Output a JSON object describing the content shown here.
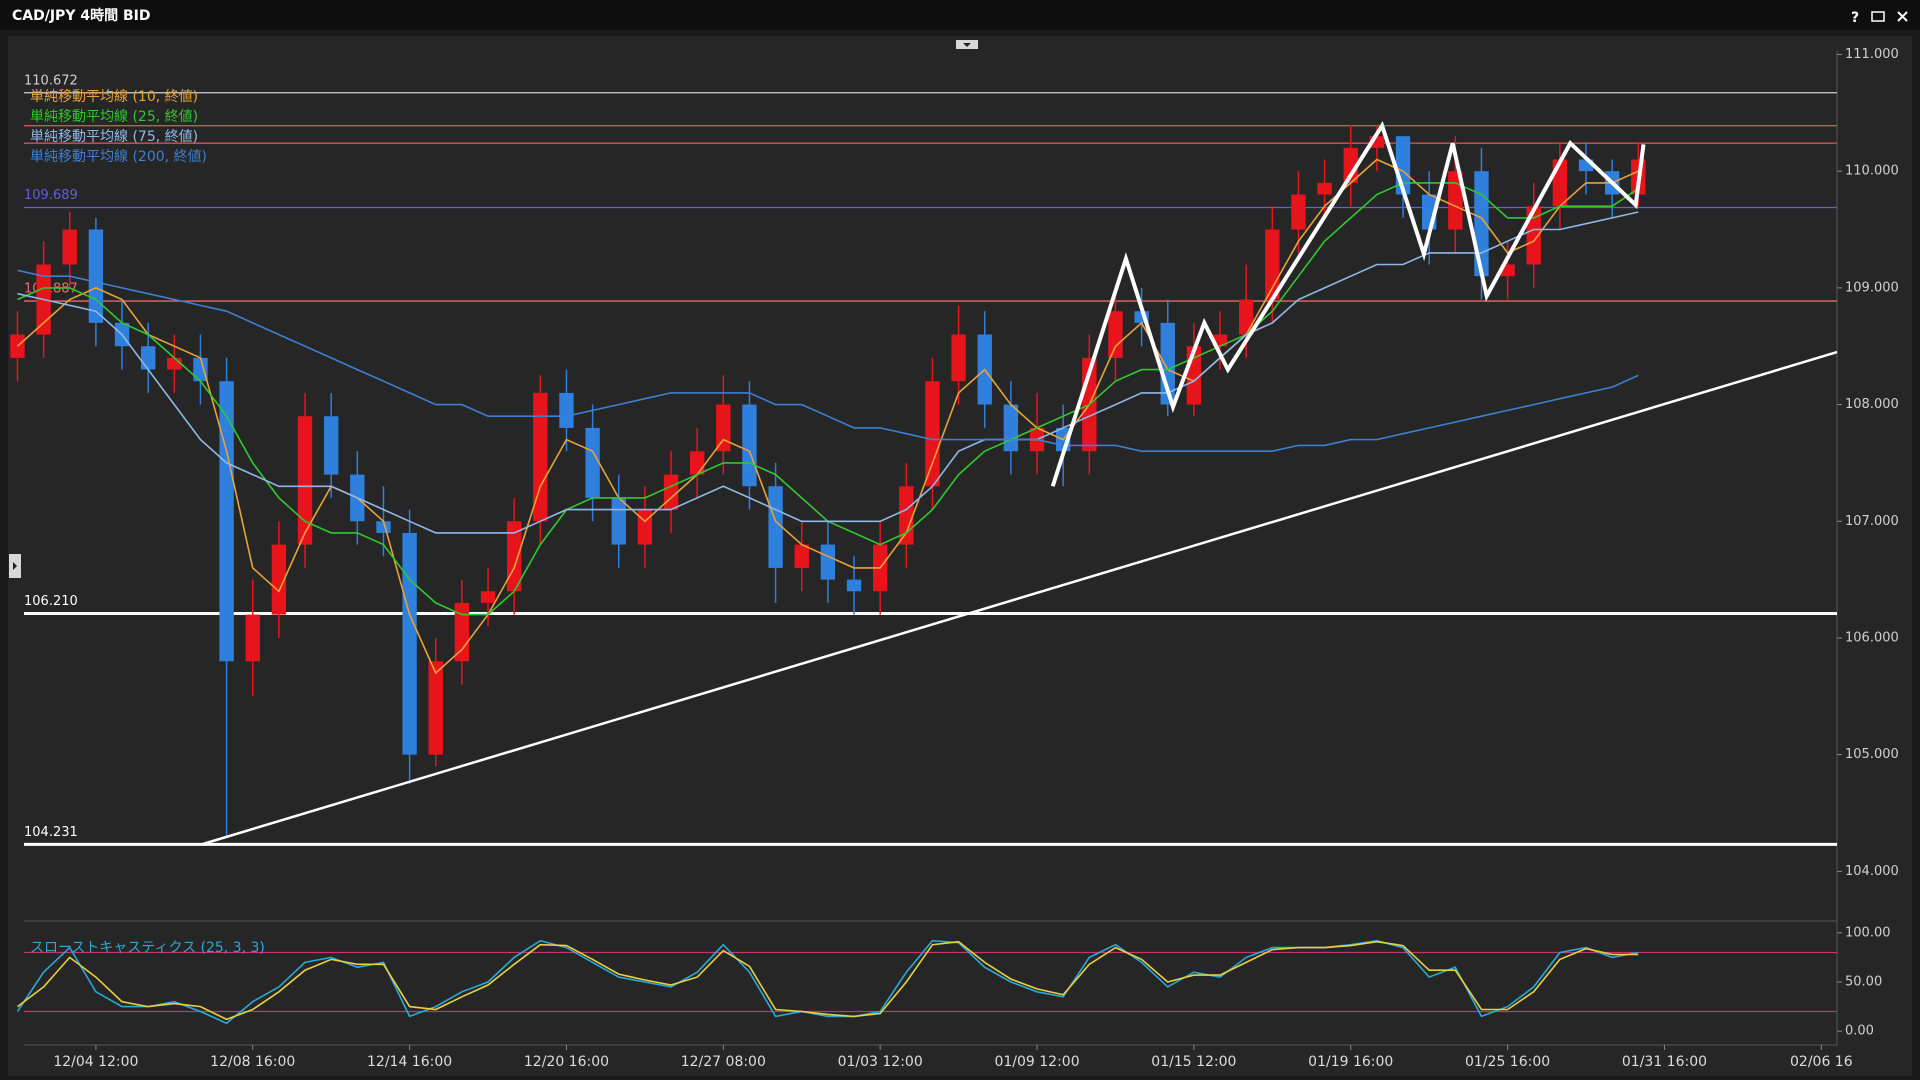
{
  "window": {
    "title": "CAD/JPY 4時間 BID",
    "help": "?"
  },
  "chart_data": [
    {
      "type": "candlestick",
      "xlim": [
        0.25,
        69.6
      ],
      "ylim": [
        103.6,
        111.03
      ],
      "yticks": [
        {
          "value": 104,
          "label": "104.000"
        },
        {
          "value": 105,
          "label": "105.000"
        },
        {
          "value": 106,
          "label": "106.000"
        },
        {
          "value": 107,
          "label": "107.000"
        },
        {
          "value": 108,
          "label": "108.000"
        },
        {
          "value": 109,
          "label": "109.000"
        },
        {
          "value": 110,
          "label": "110.000"
        },
        {
          "value": 111,
          "label": "111.000"
        }
      ],
      "up_color": "#e8141c",
      "down_color": "#2f7fdc",
      "open": [
        108.4,
        108.6,
        109.2,
        109.5,
        108.7,
        108.5,
        108.3,
        108.4,
        108.2,
        105.8,
        106.2,
        106.8,
        107.9,
        107.4,
        107.0,
        106.9,
        105.0,
        105.8,
        106.3,
        106.4,
        107.0,
        108.1,
        107.8,
        107.2,
        106.8,
        107.1,
        107.4,
        107.6,
        108.0,
        107.3,
        106.6,
        106.8,
        106.5,
        106.4,
        106.8,
        107.3,
        108.2,
        108.6,
        108.0,
        107.6,
        107.8,
        107.6,
        108.4,
        108.8,
        108.7,
        108.0,
        108.5,
        108.6,
        108.9,
        109.5,
        109.8,
        109.9,
        110.2,
        110.3,
        109.8,
        109.5,
        110.0,
        109.1,
        109.2,
        109.7,
        110.1,
        110.0,
        109.8
      ],
      "high": [
        108.8,
        109.4,
        109.65,
        109.6,
        108.9,
        108.7,
        108.6,
        108.6,
        108.4,
        106.5,
        107.0,
        108.1,
        108.1,
        107.6,
        107.3,
        107.1,
        106.0,
        106.5,
        106.6,
        107.2,
        108.25,
        108.3,
        108.0,
        107.4,
        107.3,
        107.6,
        107.8,
        108.25,
        108.2,
        107.5,
        107.0,
        107.0,
        106.7,
        107.0,
        107.5,
        108.4,
        108.85,
        108.8,
        108.2,
        108.1,
        108.0,
        108.6,
        109.0,
        109.0,
        108.9,
        108.7,
        108.8,
        109.2,
        109.7,
        110.0,
        110.1,
        110.4,
        110.4,
        110.3,
        110.0,
        110.3,
        110.2,
        109.4,
        109.9,
        110.25,
        110.25,
        110.1,
        110.25
      ],
      "low": [
        108.2,
        108.4,
        109.0,
        108.5,
        108.3,
        108.1,
        108.1,
        108.0,
        104.3,
        105.5,
        106.0,
        106.6,
        107.2,
        106.8,
        106.7,
        104.75,
        104.9,
        105.6,
        106.1,
        106.2,
        106.8,
        107.6,
        107.0,
        106.6,
        106.6,
        106.9,
        107.2,
        107.4,
        107.1,
        106.3,
        106.4,
        106.3,
        106.2,
        106.2,
        106.6,
        107.1,
        108.0,
        107.8,
        107.4,
        107.4,
        107.3,
        107.4,
        108.2,
        108.5,
        107.9,
        107.9,
        108.3,
        108.4,
        108.7,
        109.3,
        109.6,
        109.7,
        110.0,
        109.6,
        109.2,
        109.3,
        108.9,
        108.9,
        109.0,
        109.5,
        109.8,
        109.6,
        109.7
      ],
      "close": [
        108.6,
        109.2,
        109.5,
        108.7,
        108.5,
        108.3,
        108.4,
        108.2,
        105.8,
        106.2,
        106.8,
        107.9,
        107.4,
        107.0,
        106.9,
        105.0,
        105.8,
        106.3,
        106.4,
        107.0,
        108.1,
        107.8,
        107.2,
        106.8,
        107.1,
        107.4,
        107.6,
        108.0,
        107.3,
        106.6,
        106.8,
        106.5,
        106.4,
        106.8,
        107.3,
        108.2,
        108.6,
        108.0,
        107.6,
        107.8,
        107.6,
        108.4,
        108.8,
        108.7,
        108.0,
        108.5,
        108.6,
        108.9,
        109.5,
        109.8,
        109.9,
        110.2,
        110.3,
        109.8,
        109.5,
        110.0,
        109.1,
        109.2,
        109.7,
        110.1,
        110.0,
        109.8,
        110.1
      ],
      "series": [
        {
          "name": "単純移動平均線 (10, 終値)",
          "color": "#e8a23a",
          "values": [
            108.5,
            108.7,
            108.9,
            109.0,
            108.9,
            108.6,
            108.5,
            108.4,
            107.6,
            106.6,
            106.4,
            106.9,
            107.3,
            107.2,
            107.0,
            106.2,
            105.7,
            105.9,
            106.2,
            106.6,
            107.3,
            107.7,
            107.6,
            107.2,
            107.0,
            107.2,
            107.4,
            107.7,
            107.6,
            107.0,
            106.8,
            106.7,
            106.6,
            106.6,
            106.9,
            107.5,
            108.1,
            108.3,
            108.0,
            107.8,
            107.7,
            108.0,
            108.5,
            108.7,
            108.3,
            108.2,
            108.4,
            108.6,
            109.0,
            109.4,
            109.7,
            109.9,
            110.1,
            110.0,
            109.8,
            109.7,
            109.6,
            109.3,
            109.4,
            109.7,
            109.9,
            109.9,
            110.0
          ]
        },
        {
          "name": "単純移動平均線 (25, 終値)",
          "color": "#2fc82f",
          "values": [
            108.9,
            109.0,
            109.0,
            108.9,
            108.7,
            108.6,
            108.4,
            108.2,
            107.9,
            107.5,
            107.2,
            107.0,
            106.9,
            106.9,
            106.8,
            106.5,
            106.3,
            106.2,
            106.2,
            106.4,
            106.8,
            107.1,
            107.2,
            107.2,
            107.2,
            107.3,
            107.4,
            107.5,
            107.5,
            107.4,
            107.2,
            107.0,
            106.9,
            106.8,
            106.9,
            107.1,
            107.4,
            107.6,
            107.7,
            107.8,
            107.9,
            108.0,
            108.2,
            108.3,
            108.3,
            108.4,
            108.5,
            108.6,
            108.8,
            109.1,
            109.4,
            109.6,
            109.8,
            109.9,
            109.9,
            109.9,
            109.8,
            109.6,
            109.6,
            109.7,
            109.7,
            109.7,
            109.85
          ]
        },
        {
          "name": "単純移動平均線 (75, 終値)",
          "color": "#8fb8e8",
          "values": [
            108.95,
            108.9,
            108.85,
            108.8,
            108.6,
            108.3,
            108.0,
            107.7,
            107.5,
            107.4,
            107.3,
            107.3,
            107.3,
            107.2,
            107.1,
            107.0,
            106.9,
            106.9,
            106.9,
            106.9,
            107.0,
            107.1,
            107.1,
            107.1,
            107.1,
            107.1,
            107.2,
            107.3,
            107.2,
            107.1,
            107.0,
            107.0,
            107.0,
            107.0,
            107.1,
            107.3,
            107.6,
            107.7,
            107.7,
            107.7,
            107.8,
            107.9,
            108.0,
            108.1,
            108.1,
            108.2,
            108.4,
            108.6,
            108.7,
            108.9,
            109.0,
            109.1,
            109.2,
            109.2,
            109.3,
            109.3,
            109.3,
            109.4,
            109.5,
            109.5,
            109.55,
            109.6,
            109.65
          ]
        },
        {
          "name": "単純移動平均線 (200, 終値)",
          "color": "#3d7fd0",
          "values": [
            109.15,
            109.1,
            109.1,
            109.05,
            109.0,
            108.95,
            108.9,
            108.85,
            108.8,
            108.7,
            108.6,
            108.5,
            108.4,
            108.3,
            108.2,
            108.1,
            108.0,
            108.0,
            107.9,
            107.9,
            107.9,
            107.9,
            107.95,
            108.0,
            108.05,
            108.1,
            108.1,
            108.1,
            108.1,
            108.0,
            108.0,
            107.9,
            107.8,
            107.8,
            107.75,
            107.7,
            107.7,
            107.7,
            107.7,
            107.7,
            107.65,
            107.65,
            107.65,
            107.6,
            107.6,
            107.6,
            107.6,
            107.6,
            107.6,
            107.65,
            107.65,
            107.7,
            107.7,
            107.75,
            107.8,
            107.85,
            107.9,
            107.95,
            108.0,
            108.05,
            108.1,
            108.15,
            108.25
          ]
        }
      ],
      "levels": [
        {
          "value": 110.672,
          "label": "110.672",
          "color": "#d0d0d0"
        },
        {
          "value": 110.39,
          "color": "#d85050"
        },
        {
          "value": 110.24,
          "color": "#d85050"
        },
        {
          "value": 109.689,
          "label": "109.689",
          "color": "#6a5ae0"
        },
        {
          "value": 108.887,
          "label": "108.887",
          "color": "#e86a6a"
        },
        {
          "value": 106.21,
          "label": "106.210",
          "color": "#ffffff",
          "bold": true
        },
        {
          "value": 104.231,
          "label": "104.231",
          "color": "#ffffff",
          "bold": true
        }
      ],
      "trendline": {
        "x": [
          7.03,
          69.6
        ],
        "y": [
          104.23,
          108.45
        ],
        "color": "#ffffff"
      },
      "zigzag": {
        "x": [
          39.6,
          42.4,
          44.2,
          45.4,
          46.3,
          52.2,
          53.8,
          54.9,
          56.2,
          59.4,
          61.9,
          62.2
        ],
        "y": [
          107.3,
          109.25,
          107.98,
          108.7,
          108.3,
          110.39,
          109.29,
          110.24,
          108.93,
          110.24,
          109.71,
          110.23
        ],
        "color": "#ffffff"
      }
    },
    {
      "type": "line",
      "title": "スローストキャスティクス (25, 3, 3)",
      "title_color": "#2aa8d8",
      "xlim": [
        0.25,
        69.6
      ],
      "ylim": [
        -9,
        108
      ],
      "yticks": [
        {
          "value": 0,
          "label": "0.00"
        },
        {
          "value": 50,
          "label": "50.00"
        },
        {
          "value": 100,
          "label": "100.00"
        }
      ],
      "xticks": [
        {
          "value": 3,
          "label": "12/04 12:00"
        },
        {
          "value": 9,
          "label": "12/08 16:00"
        },
        {
          "value": 15,
          "label": "12/14 16:00"
        },
        {
          "value": 21,
          "label": "12/20 16:00"
        },
        {
          "value": 27,
          "label": "12/27 08:00"
        },
        {
          "value": 33,
          "label": "01/03 12:00"
        },
        {
          "value": 39,
          "label": "01/09 12:00"
        },
        {
          "value": 45,
          "label": "01/15 12:00"
        },
        {
          "value": 51,
          "label": "01/19 16:00"
        },
        {
          "value": 57,
          "label": "01/25 16:00"
        },
        {
          "value": 63,
          "label": "01/31 16:00"
        },
        {
          "value": 69,
          "label": "02/06 16"
        }
      ],
      "levels": [
        {
          "value": 80,
          "color": "#c8336e"
        },
        {
          "value": 20,
          "color": "#c8336e"
        }
      ],
      "series": [
        {
          "color": "#2aa8d8",
          "values": [
            20,
            60,
            85,
            40,
            25,
            25,
            30,
            20,
            8,
            30,
            45,
            70,
            75,
            65,
            70,
            15,
            25,
            40,
            50,
            75,
            92,
            85,
            70,
            55,
            50,
            45,
            60,
            88,
            60,
            15,
            20,
            15,
            15,
            20,
            60,
            92,
            90,
            65,
            50,
            40,
            35,
            75,
            88,
            70,
            45,
            60,
            55,
            75,
            85,
            85,
            85,
            88,
            92,
            85,
            55,
            65,
            15,
            25,
            45,
            80,
            85,
            75,
            80
          ]
        },
        {
          "color": "#e8d040",
          "values": [
            25,
            45,
            75,
            55,
            30,
            25,
            28,
            25,
            12,
            22,
            40,
            62,
            73,
            68,
            68,
            25,
            22,
            35,
            47,
            68,
            88,
            87,
            73,
            58,
            52,
            47,
            55,
            82,
            66,
            22,
            20,
            17,
            15,
            18,
            50,
            88,
            91,
            70,
            53,
            43,
            37,
            68,
            85,
            73,
            50,
            57,
            57,
            70,
            83,
            85,
            85,
            87,
            91,
            87,
            62,
            62,
            22,
            22,
            40,
            73,
            84,
            78,
            78
          ]
        }
      ]
    }
  ]
}
